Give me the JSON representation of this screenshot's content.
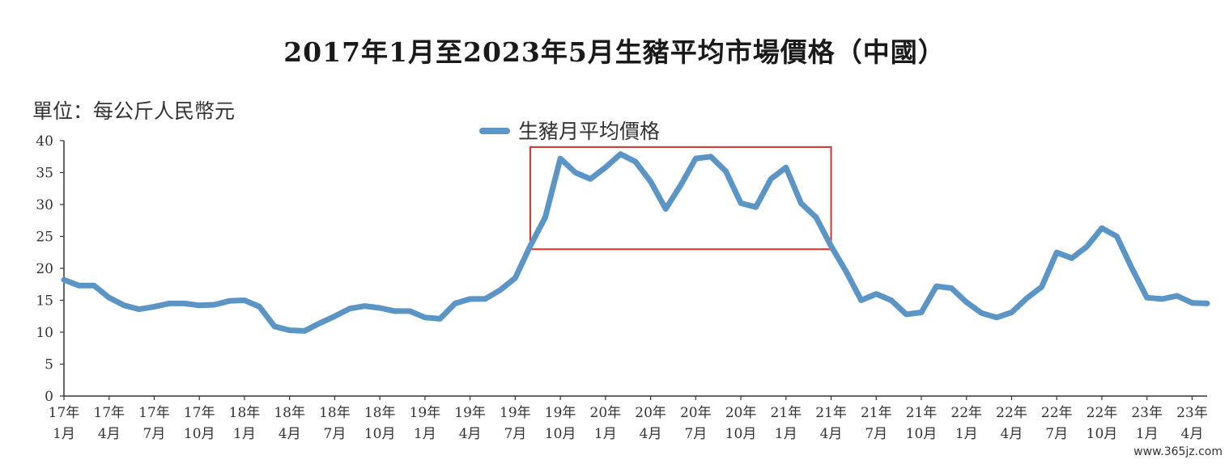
{
  "chart_data": {
    "type": "line",
    "title": "2017年1月至2023年5月生豬平均市場價格（中國）",
    "unit_label": "單位：每公斤人民幣元",
    "legend_position": "top-center",
    "ylim": [
      0,
      40
    ],
    "yticks": [
      "0",
      "5",
      "10",
      "15",
      "20",
      "25",
      "30",
      "35",
      "40"
    ],
    "x_tick_labels": [
      {
        "year": "17年",
        "month": "1月"
      },
      {
        "year": "17年",
        "month": "4月"
      },
      {
        "year": "17年",
        "month": "7月"
      },
      {
        "year": "17年",
        "month": "10月"
      },
      {
        "year": "18年",
        "month": "1月"
      },
      {
        "year": "18年",
        "month": "4月"
      },
      {
        "year": "18年",
        "month": "7月"
      },
      {
        "year": "18年",
        "month": "10月"
      },
      {
        "year": "19年",
        "month": "1月"
      },
      {
        "year": "19年",
        "month": "4月"
      },
      {
        "year": "19年",
        "month": "7月"
      },
      {
        "year": "19年",
        "month": "10月"
      },
      {
        "year": "20年",
        "month": "1月"
      },
      {
        "year": "20年",
        "month": "4月"
      },
      {
        "year": "20年",
        "month": "7月"
      },
      {
        "year": "20年",
        "month": "10月"
      },
      {
        "year": "21年",
        "month": "1月"
      },
      {
        "year": "21年",
        "month": "4月"
      },
      {
        "year": "21年",
        "month": "7月"
      },
      {
        "year": "21年",
        "month": "10月"
      },
      {
        "year": "22年",
        "month": "1月"
      },
      {
        "year": "22年",
        "month": "4月"
      },
      {
        "year": "22年",
        "month": "7月"
      },
      {
        "year": "22年",
        "month": "10月"
      },
      {
        "year": "23年",
        "month": "1月"
      },
      {
        "year": "23年",
        "month": "4月"
      }
    ],
    "series": [
      {
        "name": "生豬月平均價格",
        "color": "#5a95c6",
        "values": [
          18.2,
          17.3,
          17.3,
          15.4,
          14.2,
          13.6,
          14.0,
          14.5,
          14.5,
          14.2,
          14.3,
          14.9,
          15.0,
          14.0,
          10.9,
          10.3,
          10.2,
          11.4,
          12.5,
          13.7,
          14.1,
          13.8,
          13.3,
          13.3,
          12.3,
          12.1,
          14.5,
          15.2,
          15.2,
          16.6,
          18.5,
          23.5,
          28.0,
          37.2,
          35.0,
          34.0,
          35.8,
          37.9,
          36.7,
          33.6,
          29.3,
          33.0,
          37.2,
          37.5,
          35.2,
          30.2,
          29.6,
          34.0,
          35.8,
          30.2,
          28.0,
          23.5,
          19.5,
          15.0,
          16.0,
          15.0,
          12.8,
          13.1,
          17.2,
          16.9,
          14.7,
          13.0,
          12.3,
          13.1,
          15.3,
          17.1,
          22.5,
          21.6,
          23.4,
          26.3,
          25.0,
          20.0,
          15.4,
          15.2,
          15.7,
          14.6,
          14.5
        ]
      }
    ],
    "annotation": {
      "type": "highlight-box",
      "color": "#d9302b",
      "x_from_index": 31,
      "x_to_index": 51,
      "y_from": 23,
      "y_to": 39
    }
  },
  "watermark": "www.365jz.com"
}
